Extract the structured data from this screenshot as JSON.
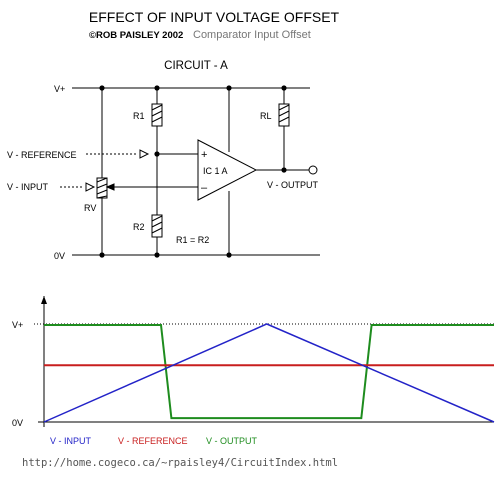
{
  "header": {
    "title": "EFFECT OF INPUT VOLTAGE OFFSET",
    "copyright": "©ROB PAISLEY 2002",
    "subtitle": "Comparator Input Offset"
  },
  "circuit": {
    "label": "CIRCUIT - A",
    "rail_top": "V+",
    "rail_bottom": "0V",
    "r1": "R1",
    "r2": "R2",
    "rl": "RL",
    "rv": "RV",
    "ic": "IC 1 A",
    "plus": "+",
    "minus": "–",
    "v_reference": "V - REFERENCE",
    "v_input": "V - INPUT",
    "v_output": "V - OUTPUT",
    "equation": "R1 = R2"
  },
  "colors": {
    "input": "#2323c8",
    "reference": "#c81e1e",
    "output": "#1e8c1e",
    "circuit": "#000000",
    "url": "#555555"
  },
  "chart_data": {
    "type": "line",
    "y_ticks": [
      "V+",
      "0V"
    ],
    "ylim": [
      0,
      1
    ],
    "xlim": [
      0,
      100
    ],
    "series": [
      {
        "name": "V - INPUT",
        "x": [
          0,
          49.5,
          100
        ],
        "y": [
          0,
          1,
          0
        ]
      },
      {
        "name": "V - REFERENCE",
        "x": [
          0,
          100
        ],
        "y": [
          0.58,
          0.58
        ]
      },
      {
        "name": "V - OUTPUT",
        "x": [
          0,
          26,
          28.3,
          70.5,
          72.8,
          100
        ],
        "y": [
          0.99,
          0.99,
          0.04,
          0.04,
          0.99,
          0.99
        ]
      }
    ],
    "legend": [
      "V - INPUT",
      "V - REFERENCE",
      "V - OUTPUT"
    ]
  },
  "footer": {
    "url": "http://home.cogeco.ca/~rpaisley4/CircuitIndex.html"
  }
}
